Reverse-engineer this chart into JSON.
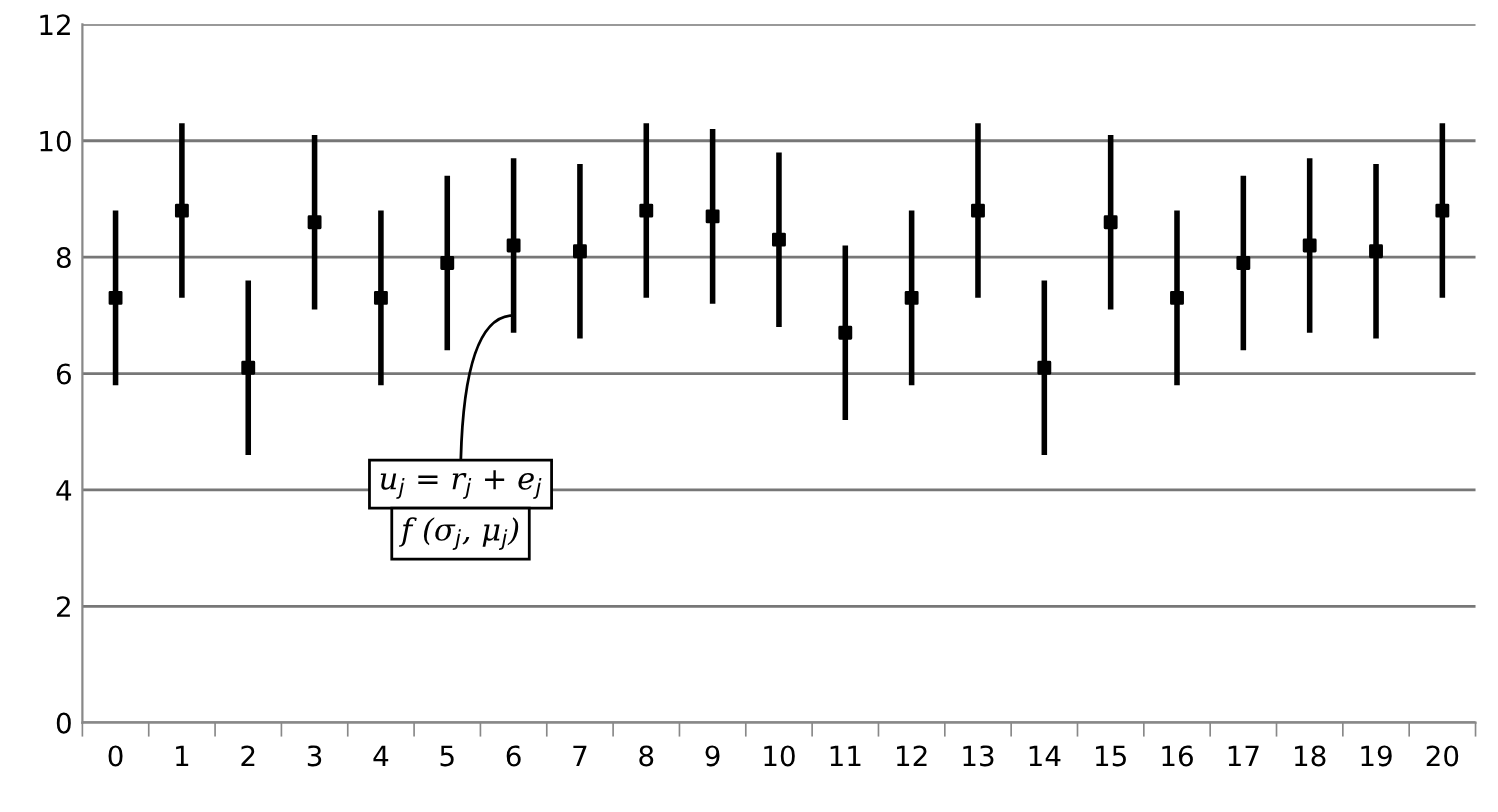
{
  "chart_data": {
    "type": "scatter",
    "categories": [
      "0",
      "1",
      "2",
      "3",
      "4",
      "5",
      "6",
      "7",
      "8",
      "9",
      "10",
      "11",
      "12",
      "13",
      "14",
      "15",
      "16",
      "17",
      "18",
      "19",
      "20"
    ],
    "values": [
      7.3,
      8.8,
      6.1,
      8.6,
      7.3,
      7.9,
      8.2,
      8.1,
      8.8,
      8.7,
      8.3,
      6.7,
      7.3,
      8.8,
      6.1,
      8.6,
      7.3,
      7.9,
      8.2,
      8.1,
      8.8
    ],
    "errors": [
      1.5,
      1.5,
      1.5,
      1.5,
      1.5,
      1.5,
      1.5,
      1.5,
      1.5,
      1.5,
      1.5,
      1.5,
      1.5,
      1.5,
      1.5,
      1.5,
      1.5,
      1.5,
      1.5,
      1.5,
      1.5
    ],
    "color": "#000000",
    "marker": "square",
    "ylim": [
      0,
      12
    ],
    "yticks": [
      0,
      2,
      4,
      6,
      8,
      10,
      12
    ],
    "grid": "y",
    "legend": false,
    "annotations": [
      {
        "text": "u$_{j}$ = r$_{j}$ + e$_{j}$",
        "x": "6",
        "y": 7
      },
      "f (σ$_{j}$, μ$_{j}$)"
    ]
  }
}
